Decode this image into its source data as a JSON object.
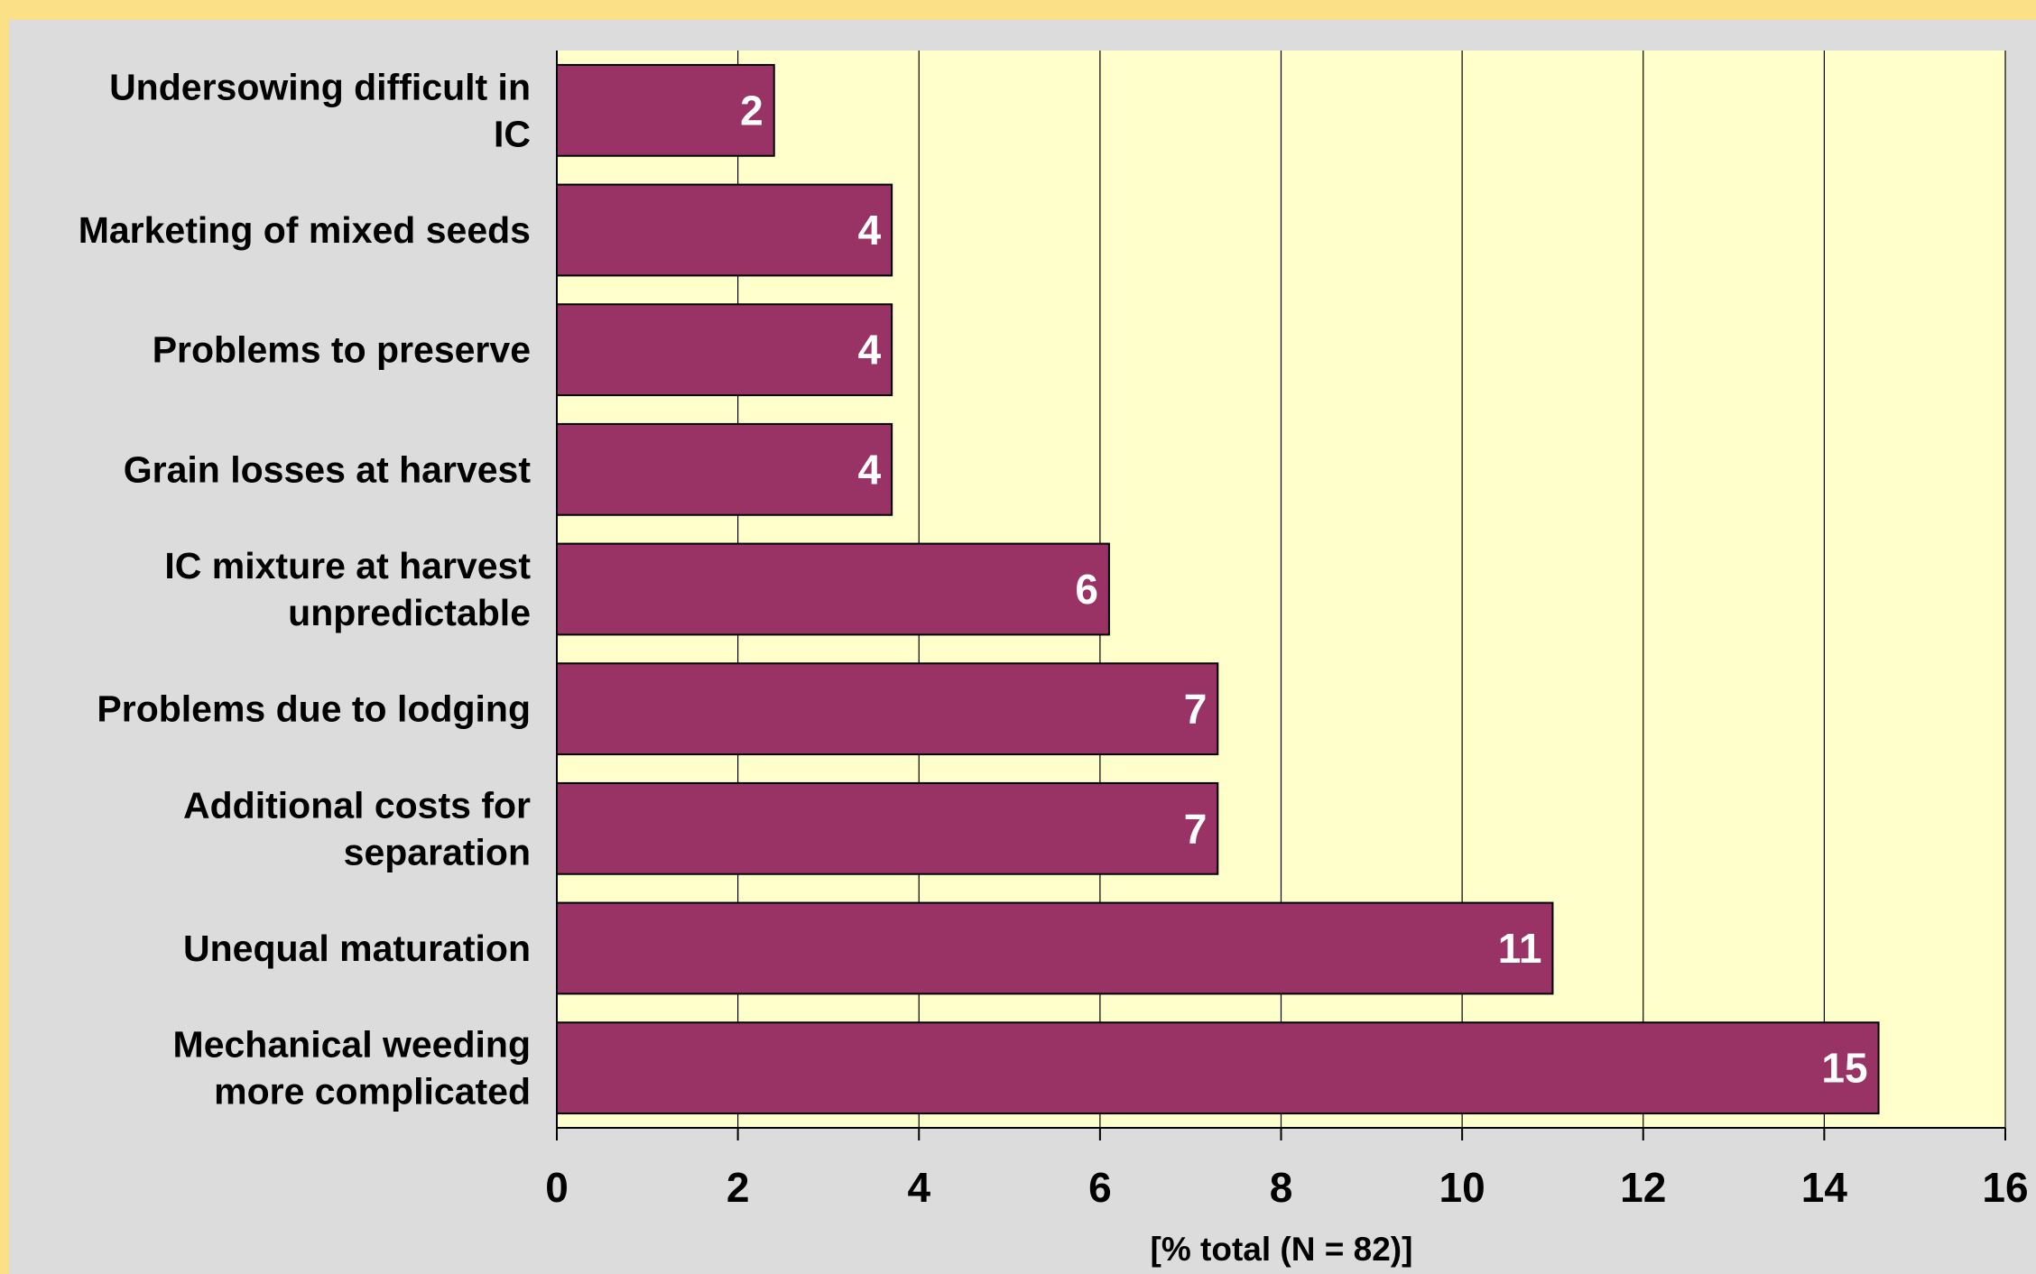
{
  "chart_data": {
    "type": "bar",
    "orientation": "horizontal",
    "categories": [
      "Undersowing difficult in IC",
      "Marketing of mixed seeds",
      "Problems to preserve",
      "Grain losses at harvest",
      "IC mixture at harvest unpredictable",
      "Problems due to lodging",
      "Additional costs for separation",
      "Unequal maturation",
      "Mechanical weeding more complicated"
    ],
    "category_lines": [
      [
        "Undersowing difficult in",
        "IC"
      ],
      [
        "Marketing of mixed seeds"
      ],
      [
        "Problems to preserve"
      ],
      [
        "Grain losses at harvest"
      ],
      [
        "IC mixture at harvest",
        "unpredictable"
      ],
      [
        "Problems due to lodging"
      ],
      [
        "Additional costs for",
        "separation"
      ],
      [
        "Unequal maturation"
      ],
      [
        "Mechanical weeding",
        "more complicated"
      ]
    ],
    "values": [
      2.4,
      3.7,
      3.7,
      3.7,
      6.1,
      7.3,
      7.3,
      11.0,
      14.6
    ],
    "data_labels": [
      "2",
      "4",
      "4",
      "4",
      "6",
      "7",
      "7",
      "11",
      "15"
    ],
    "xlabel": "[% total (N = 82)]",
    "ylabel": "",
    "xlim": [
      0,
      16
    ],
    "xticks": [
      0,
      2,
      4,
      6,
      8,
      10,
      12,
      14,
      16
    ],
    "grid": true,
    "legend": "none",
    "colors": {
      "bar": "#993366",
      "plot_background": "#ffffcc",
      "chart_background": "#dcdcdc",
      "page_background": "#fbe087",
      "gridline": "#000000",
      "data_label": "#ffffff"
    }
  }
}
